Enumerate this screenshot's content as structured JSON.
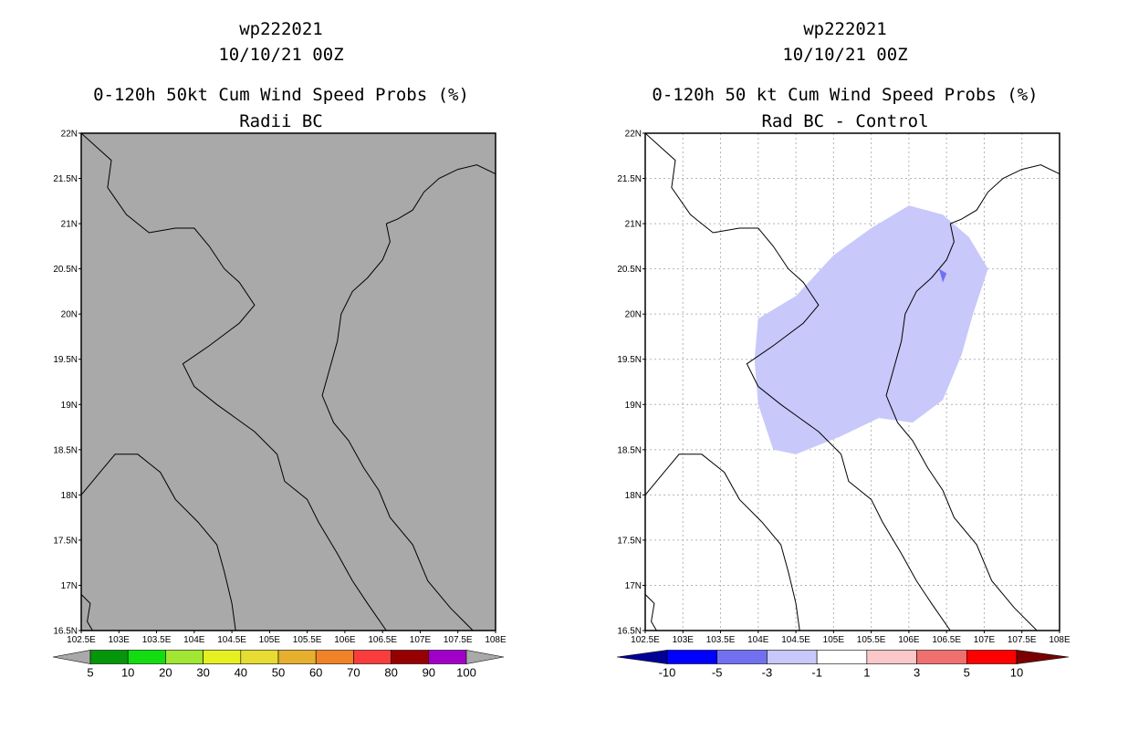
{
  "panels": [
    {
      "storm_id": "wp222021",
      "datetime": "10/10/21 00Z",
      "title": "0-120h 50kt Cum Wind Speed Probs (%)",
      "subtitle": "Radii BC",
      "background": "#a9a9a9",
      "grid": false,
      "colorbar": {
        "labels": [
          "5",
          "10",
          "20",
          "30",
          "40",
          "50",
          "60",
          "70",
          "80",
          "90",
          "100"
        ],
        "colors": [
          "#a9a9a9",
          "#05960a",
          "#11dd11",
          "#a0e632",
          "#e6f020",
          "#e6dc32",
          "#e6af2d",
          "#f08228",
          "#fa3c3c",
          "#960000",
          "#a000c8",
          "#a9a9a9"
        ]
      }
    },
    {
      "storm_id": "wp222021",
      "datetime": "10/10/21 00Z",
      "title": "0-120h 50 kt Cum Wind Speed Probs (%)",
      "subtitle": "Rad BC - Control",
      "background": "#ffffff",
      "grid": true,
      "colorbar": {
        "labels": [
          "-10",
          "-5",
          "-3",
          "-1",
          "1",
          "3",
          "5",
          "10"
        ],
        "colors": [
          "#000096",
          "#0000ff",
          "#7070f0",
          "#c8c8fa",
          "#ffffff",
          "#fac8c8",
          "#f07070",
          "#ff0000",
          "#7a0000"
        ]
      }
    }
  ],
  "axes": {
    "lon_range": [
      102.5,
      108.0
    ],
    "lat_range": [
      16.5,
      22.0
    ],
    "lon_ticks": [
      "102.5E",
      "103E",
      "103.5E",
      "104E",
      "104.5E",
      "105E",
      "105.5E",
      "106E",
      "106.5E",
      "107E",
      "107.5E",
      "108E"
    ],
    "lat_ticks": [
      "16.5N",
      "17N",
      "17.5N",
      "18N",
      "18.5N",
      "19N",
      "19.5N",
      "20N",
      "20.5N",
      "21N",
      "21.5N",
      "22N"
    ]
  },
  "map_data": {
    "coastline": [
      [
        106.55,
        21.0
      ],
      [
        106.6,
        20.8
      ],
      [
        106.5,
        20.6
      ],
      [
        106.3,
        20.4
      ],
      [
        106.1,
        20.25
      ],
      [
        105.95,
        20.0
      ],
      [
        105.9,
        19.7
      ],
      [
        105.8,
        19.4
      ],
      [
        105.7,
        19.1
      ],
      [
        105.85,
        18.8
      ],
      [
        106.05,
        18.6
      ],
      [
        106.25,
        18.3
      ],
      [
        106.45,
        18.05
      ],
      [
        106.6,
        17.75
      ],
      [
        106.9,
        17.45
      ],
      [
        107.1,
        17.05
      ],
      [
        107.4,
        16.75
      ],
      [
        107.7,
        16.5
      ]
    ],
    "north_coast": [
      [
        106.55,
        21.0
      ],
      [
        106.7,
        21.05
      ],
      [
        106.9,
        21.15
      ],
      [
        107.05,
        21.35
      ],
      [
        107.25,
        21.5
      ],
      [
        107.5,
        21.6
      ],
      [
        107.75,
        21.65
      ],
      [
        108.0,
        21.55
      ]
    ],
    "borders": [
      [
        [
          102.5,
          22.0
        ],
        [
          102.7,
          21.85
        ],
        [
          102.9,
          21.7
        ],
        [
          102.85,
          21.4
        ],
        [
          103.1,
          21.1
        ],
        [
          103.4,
          20.9
        ],
        [
          103.75,
          20.95
        ],
        [
          104.0,
          20.95
        ],
        [
          104.2,
          20.75
        ],
        [
          104.4,
          20.5
        ],
        [
          104.6,
          20.35
        ],
        [
          104.8,
          20.1
        ],
        [
          104.6,
          19.9
        ],
        [
          104.2,
          19.65
        ],
        [
          103.85,
          19.45
        ],
        [
          104.0,
          19.2
        ],
        [
          104.3,
          19.0
        ],
        [
          104.55,
          18.85
        ],
        [
          104.8,
          18.7
        ],
        [
          105.1,
          18.45
        ],
        [
          105.2,
          18.15
        ],
        [
          105.5,
          17.95
        ],
        [
          105.65,
          17.7
        ],
        [
          105.9,
          17.35
        ],
        [
          106.1,
          17.05
        ],
        [
          106.3,
          16.8
        ],
        [
          106.55,
          16.5
        ]
      ],
      [
        [
          102.5,
          18.0
        ],
        [
          102.75,
          18.25
        ],
        [
          102.95,
          18.45
        ],
        [
          103.25,
          18.45
        ],
        [
          103.55,
          18.25
        ],
        [
          103.75,
          17.95
        ],
        [
          104.05,
          17.7
        ],
        [
          104.3,
          17.45
        ],
        [
          104.4,
          17.15
        ],
        [
          104.5,
          16.8
        ],
        [
          104.55,
          16.5
        ]
      ],
      [
        [
          102.5,
          16.9
        ],
        [
          102.62,
          16.8
        ],
        [
          102.58,
          16.6
        ],
        [
          102.65,
          16.5
        ]
      ]
    ],
    "anomaly_region": [
      [
        104.0,
        19.95
      ],
      [
        104.5,
        20.2
      ],
      [
        105.0,
        20.65
      ],
      [
        105.5,
        20.95
      ],
      [
        106.0,
        21.2
      ],
      [
        106.45,
        21.1
      ],
      [
        106.8,
        20.85
      ],
      [
        107.05,
        20.5
      ],
      [
        106.85,
        20.0
      ],
      [
        106.7,
        19.55
      ],
      [
        106.45,
        19.05
      ],
      [
        106.05,
        18.8
      ],
      [
        105.6,
        18.85
      ],
      [
        105.1,
        18.65
      ],
      [
        104.5,
        18.45
      ],
      [
        104.2,
        18.5
      ],
      [
        104.0,
        19.0
      ],
      [
        103.95,
        19.5
      ]
    ],
    "anomaly_spot": [
      [
        106.4,
        20.5
      ],
      [
        106.5,
        20.45
      ],
      [
        106.45,
        20.35
      ]
    ]
  }
}
